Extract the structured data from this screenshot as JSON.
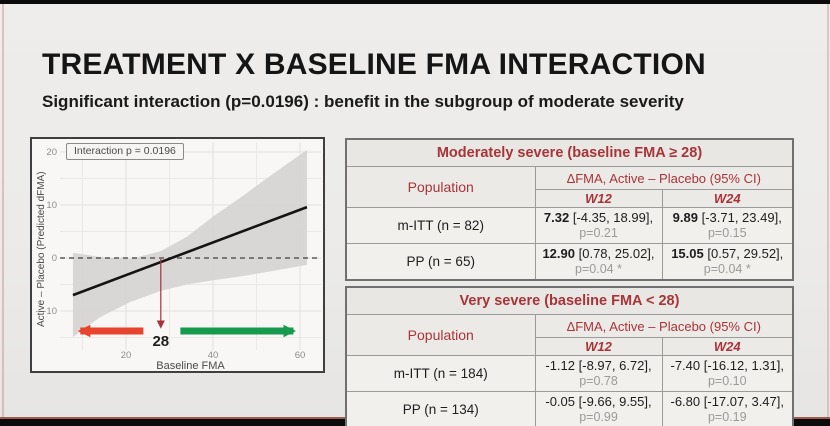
{
  "slide": {
    "title": "TREATMENT X BASELINE FMA INTERACTION",
    "subtitle": "Significant interaction (p=0.0196) : benefit in the subgroup of moderate severity"
  },
  "colors": {
    "accent_red": "#a93438",
    "band_gray": "#d6d4d1",
    "arrow_red": "#e8432c",
    "arrow_green": "#169a4e",
    "marker_dark_red": "#a5333a",
    "regression_black": "#141414",
    "tick_gray": "#8d8d8d",
    "axis_label_gray": "#4a4a4a",
    "p_value_gray": "#9a9a9a"
  },
  "chart_data": {
    "type": "line",
    "annotation": "Interaction p = 0.0196",
    "xlabel": "Baseline FMA",
    "ylabel": "Active – Placebo (Predicted dFMA)",
    "x_ticks": [
      20,
      40,
      60
    ],
    "x_minor": [
      10,
      30,
      50
    ],
    "y_ticks": [
      20,
      10,
      0,
      -10
    ],
    "y_minor": [
      15,
      5,
      -5,
      -15
    ],
    "xlim": [
      6,
      63
    ],
    "ylim": [
      -16,
      22
    ],
    "zero_reference": 0,
    "regression_line": {
      "x": [
        7.8,
        61.6
      ],
      "y": [
        -7.0,
        9.6
      ]
    },
    "confidence_band": {
      "x": [
        7.8,
        14,
        21,
        28,
        34,
        40,
        47,
        54,
        61.6
      ],
      "upper": [
        1.0,
        0.2,
        -0.2,
        1.3,
        4.0,
        7.8,
        11.8,
        16.0,
        20.4
      ],
      "lower": [
        -14.9,
        -11.2,
        -8.3,
        -6.2,
        -5.0,
        -4.2,
        -3.4,
        -2.4,
        -1.3
      ]
    },
    "threshold_marker": {
      "x": 28,
      "label": "28"
    },
    "severity_arrows": {
      "worse": {
        "x_from": 24,
        "x_to": 9.5
      },
      "better": {
        "x_from": 32.5,
        "x_to": 58.5
      }
    }
  },
  "tables": [
    {
      "title": "Moderately severe (baseline FMA ≥ 28)",
      "population_header": "Population",
      "effect_header": "ΔFMA, Active – Placebo (95% CI)",
      "week_cols": {
        "w12": "W12",
        "w24": "W24"
      },
      "rows": [
        {
          "population": "m-ITT (n = 82)",
          "w12": {
            "est": "7.32",
            "ci": "[-4.35, 18.99],",
            "p": "p=0.21"
          },
          "w24": {
            "est": "9.89",
            "ci": "[-3.71, 23.49],",
            "p": "p=0.15"
          }
        },
        {
          "population": "PP (n = 65)",
          "w12": {
            "est": "12.90",
            "ci": "[0.78, 25.02],",
            "p": "p=0.04 *"
          },
          "w24": {
            "est": "15.05",
            "ci": "[0.57, 29.52],",
            "p": "p=0.04 *"
          }
        }
      ]
    },
    {
      "title": "Very severe (baseline FMA < 28)",
      "population_header": "Population",
      "effect_header": "ΔFMA, Active – Placebo (95% CI)",
      "week_cols": {
        "w12": "W12",
        "w24": "W24"
      },
      "rows": [
        {
          "population": "m-ITT (n = 184)",
          "w12": {
            "est": "-1.12",
            "ci": "[-8.97, 6.72],",
            "p": "p=0.78"
          },
          "w24": {
            "est": "-7.40",
            "ci": "[-16.12, 1.31],",
            "p": "p=0.10"
          }
        },
        {
          "population": "PP (n = 134)",
          "w12": {
            "est": "-0.05",
            "ci": "[-9.66, 9.55],",
            "p": "p=0.99"
          },
          "w24": {
            "est": "-6.80",
            "ci": "[-17.07, 3.47],",
            "p": "p=0.19"
          }
        }
      ]
    }
  ]
}
